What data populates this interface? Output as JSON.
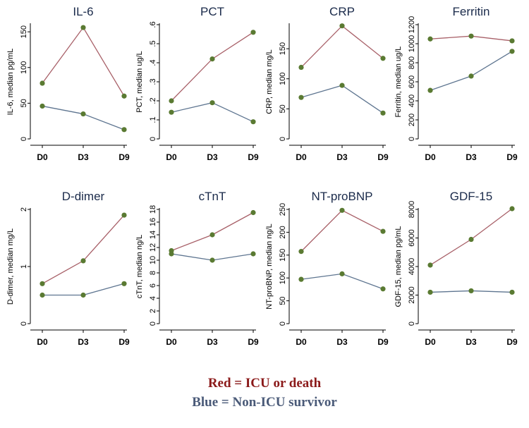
{
  "chart_data": [
    {
      "type": "line",
      "title": "IL-6",
      "ylabel": "IL-6, median pg/mL",
      "categories": [
        "D0",
        "D3",
        "D9"
      ],
      "yticks": [
        "0",
        "50",
        "100",
        "150"
      ],
      "ylim": [
        0,
        160
      ],
      "series": [
        {
          "values": [
            78,
            156,
            60
          ],
          "color": "#a86068"
        },
        {
          "values": [
            46,
            35,
            13
          ],
          "color": "#5e7590"
        }
      ]
    },
    {
      "type": "line",
      "title": "PCT",
      "ylabel": "PCT, median ug/L",
      "categories": [
        "D0",
        "D3",
        "D9"
      ],
      "yticks": [
        "0",
        ".1",
        ".2",
        ".3",
        ".4",
        ".5",
        ".6"
      ],
      "ylim": [
        0,
        0.6
      ],
      "series": [
        {
          "values": [
            0.2,
            0.42,
            0.56
          ],
          "color": "#a86068"
        },
        {
          "values": [
            0.14,
            0.19,
            0.09
          ],
          "color": "#5e7590"
        }
      ]
    },
    {
      "type": "line",
      "title": "CRP",
      "ylabel": "CRP, median mg/L",
      "categories": [
        "D0",
        "D3",
        "D9"
      ],
      "yticks": [
        "0",
        "50",
        "100",
        "150"
      ],
      "ylim": [
        0,
        190
      ],
      "series": [
        {
          "values": [
            119,
            188,
            134
          ],
          "color": "#a86068"
        },
        {
          "values": [
            69,
            89,
            43
          ],
          "color": "#5e7590"
        }
      ]
    },
    {
      "type": "line",
      "title": "Ferritin",
      "ylabel": "Ferritin, median ug/L",
      "categories": [
        "D0",
        "D3",
        "D9"
      ],
      "yticks": [
        "0",
        "200",
        "400",
        "600",
        "800",
        "1000",
        "1200"
      ],
      "ylim": [
        0,
        1200
      ],
      "series": [
        {
          "values": [
            1050,
            1080,
            1030
          ],
          "color": "#a86068"
        },
        {
          "values": [
            510,
            660,
            920
          ],
          "color": "#5e7590"
        }
      ]
    },
    {
      "type": "line",
      "title": "D-dimer",
      "ylabel": "D-dimer, median mg/L",
      "categories": [
        "D0",
        "D3",
        "D9"
      ],
      "yticks": [
        "0",
        "1",
        "2"
      ],
      "ylim": [
        0,
        2
      ],
      "series": [
        {
          "values": [
            0.7,
            1.1,
            1.9
          ],
          "color": "#a86068"
        },
        {
          "values": [
            0.5,
            0.5,
            0.7
          ],
          "color": "#5e7590"
        }
      ]
    },
    {
      "type": "line",
      "title": "cTnT",
      "ylabel": "cTnT, median ng/L",
      "categories": [
        "D0",
        "D3",
        "D9"
      ],
      "yticks": [
        "0",
        "2",
        "4",
        "6",
        "8",
        "10",
        "12",
        "14",
        "16",
        "18"
      ],
      "ylim": [
        0,
        18
      ],
      "series": [
        {
          "values": [
            11.5,
            14,
            17.5
          ],
          "color": "#a86068"
        },
        {
          "values": [
            11,
            10,
            11
          ],
          "color": "#5e7590"
        }
      ]
    },
    {
      "type": "line",
      "title": "NT-proBNP",
      "ylabel": "NT-proBNP, median ng/L",
      "categories": [
        "D0",
        "D3",
        "D9"
      ],
      "yticks": [
        "0",
        "50",
        "100",
        "150",
        "200",
        "250"
      ],
      "ylim": [
        0,
        250
      ],
      "series": [
        {
          "values": [
            158,
            248,
            202
          ],
          "color": "#a86068"
        },
        {
          "values": [
            97,
            109,
            76
          ],
          "color": "#5e7590"
        }
      ]
    },
    {
      "type": "line",
      "title": "GDF-15",
      "ylabel": "GDF-15, median pg/mL",
      "categories": [
        "D0",
        "D3",
        "D9"
      ],
      "yticks": [
        "0",
        "2000",
        "4000",
        "6000",
        "8000"
      ],
      "ylim": [
        0,
        8000
      ],
      "series": [
        {
          "values": [
            4100,
            5900,
            8050
          ],
          "color": "#a86068"
        },
        {
          "values": [
            2200,
            2300,
            2200
          ],
          "color": "#5e7590"
        }
      ]
    }
  ],
  "legend": {
    "red_text": "Red  =  ICU or death",
    "blue_text": "Blue =  Non-ICU survivor",
    "red_color": "#8b1a1a",
    "blue_color": "#4a5a78"
  },
  "marker_color": "#5a7a32"
}
